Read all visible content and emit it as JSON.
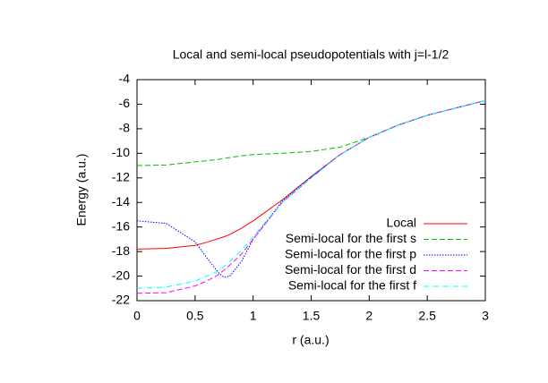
{
  "chart_data": {
    "type": "line",
    "title": "Local and semi-local pseudopotentials with j=l-1/2",
    "x_label": "r (a.u.)",
    "y_label": "Energy (a.u.)",
    "x": [
      0,
      0.25,
      0.5,
      0.6,
      0.7,
      0.75,
      0.8,
      0.9,
      1,
      1.25,
      1.5,
      1.75,
      2,
      2.25,
      2.5,
      2.75,
      3
    ],
    "series": [
      {
        "name": "Local",
        "color": "#ff0000",
        "dash": "solid",
        "values": [
          -17.8,
          -17.75,
          -17.5,
          -17.25,
          -16.95,
          -16.8,
          -16.6,
          -16.1,
          -15.5,
          -13.8,
          -11.9,
          -10.1,
          -8.7,
          -7.7,
          -6.9,
          -6.3,
          -5.7
        ]
      },
      {
        "name": "Semi-local for the first s",
        "color": "#00c000",
        "dash": "dashed",
        "values": [
          -11.0,
          -10.95,
          -10.7,
          -10.6,
          -10.5,
          -10.4,
          -10.35,
          -10.2,
          -10.1,
          -10.0,
          -9.85,
          -9.5,
          -8.7,
          -7.7,
          -6.9,
          -6.3,
          -5.7
        ]
      },
      {
        "name": "Semi-local for the first p",
        "color": "#0000ff",
        "dash": "dotted",
        "values": [
          -15.5,
          -15.7,
          -17.2,
          -18.5,
          -19.7,
          -20.1,
          -20.0,
          -18.8,
          -17.0,
          -13.9,
          -11.9,
          -10.1,
          -8.7,
          -7.7,
          -6.9,
          -6.3,
          -5.7
        ]
      },
      {
        "name": "Semi-local for the first d",
        "color": "#ff00ff",
        "dash": "dashed",
        "values": [
          -21.4,
          -21.35,
          -20.8,
          -20.4,
          -19.9,
          -19.5,
          -19.1,
          -18.2,
          -17.0,
          -14.0,
          -12.0,
          -10.1,
          -8.7,
          -7.7,
          -6.9,
          -6.3,
          -5.7
        ]
      },
      {
        "name": "Semi-local for the first f",
        "color": "#00ffff",
        "dash": "dashdot",
        "values": [
          -21.0,
          -20.9,
          -20.4,
          -20.0,
          -19.6,
          -19.2,
          -18.8,
          -17.9,
          -16.8,
          -14.0,
          -12.0,
          -10.1,
          -8.7,
          -7.7,
          -6.9,
          -6.3,
          -5.7
        ]
      }
    ],
    "xlim": [
      0,
      3
    ],
    "xticks": [
      0,
      0.5,
      1,
      1.5,
      2,
      2.5,
      3
    ],
    "ylim": [
      -22,
      -4
    ],
    "yticks": [
      -22,
      -20,
      -18,
      -16,
      -14,
      -12,
      -10,
      -8,
      -6,
      -4
    ],
    "legend": "lower-right",
    "grid": false
  }
}
